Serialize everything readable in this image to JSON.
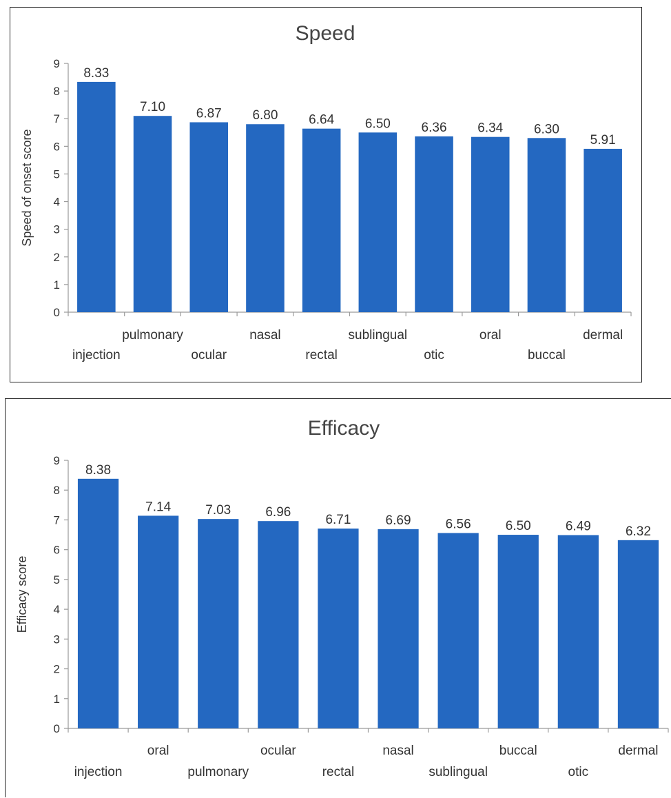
{
  "chart_data": [
    {
      "type": "bar",
      "title": "Speed",
      "ylabel": "Speed of onset score",
      "xlabel": "",
      "ylim": [
        0,
        9
      ],
      "yticks": [
        0,
        1,
        2,
        3,
        4,
        5,
        6,
        7,
        8,
        9
      ],
      "categories": [
        "injection",
        "pulmonary",
        "ocular",
        "nasal",
        "rectal",
        "sublingual",
        "otic",
        "oral",
        "buccal",
        "dermal"
      ],
      "values": [
        8.33,
        7.1,
        6.87,
        6.8,
        6.64,
        6.5,
        6.36,
        6.34,
        6.3,
        5.91
      ],
      "value_labels": [
        "8.33",
        "7.10",
        "6.87",
        "6.80",
        "6.64",
        "6.50",
        "6.36",
        "6.34",
        "6.30",
        "5.91"
      ],
      "color": "#2468c1",
      "grid": false
    },
    {
      "type": "bar",
      "title": "Efficacy",
      "ylabel": "Efficacy score",
      "xlabel": "",
      "ylim": [
        0,
        9
      ],
      "yticks": [
        0,
        1,
        2,
        3,
        4,
        5,
        6,
        7,
        8,
        9
      ],
      "categories": [
        "injection",
        "oral",
        "pulmonary",
        "ocular",
        "rectal",
        "nasal",
        "sublingual",
        "buccal",
        "otic",
        "dermal"
      ],
      "values": [
        8.38,
        7.14,
        7.03,
        6.96,
        6.71,
        6.69,
        6.56,
        6.5,
        6.49,
        6.32
      ],
      "value_labels": [
        "8.38",
        "7.14",
        "7.03",
        "6.96",
        "6.71",
        "6.69",
        "6.56",
        "6.50",
        "6.49",
        "6.32"
      ],
      "color": "#2468c1",
      "grid": false
    }
  ]
}
